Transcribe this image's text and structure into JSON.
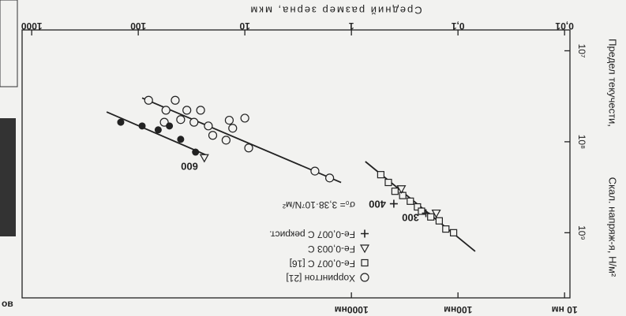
{
  "chart_data": {
    "type": "scatter",
    "x_label": "Средний размер зерна, мкм",
    "y_label": "Предел текучести,",
    "y_label2": "Скал. напряж-я, Н/м²",
    "xscale": "log",
    "yscale": "log",
    "xlim": [
      0.0089,
      1230
    ],
    "ylim": [
      5900000,
      5200000000
    ],
    "xticks": [
      {
        "value": 0.01,
        "label": "0,01"
      },
      {
        "value": 0.1,
        "label": "0,1"
      },
      1,
      10,
      100,
      1000
    ],
    "x2ticks": [
      {
        "value": 0.01,
        "label": "10 нм"
      },
      {
        "value": 0.1,
        "label": "100нм"
      },
      {
        "value": 1,
        "label": "1000нм"
      }
    ],
    "yticks": [
      {
        "value": 10000000,
        "label": "10⁷"
      },
      {
        "value": 100000000,
        "label": "10⁸"
      },
      {
        "value": 1000000000,
        "label": "10⁹"
      }
    ],
    "grid": false,
    "series": [
      {
        "name": "Хоррингтон [21]",
        "marker": "circle",
        "color": "#222222",
        "x": [
          80,
          45,
          55,
          35,
          26,
          40,
          30,
          22,
          57,
          14,
          10,
          13,
          20,
          15,
          9.2,
          2.2,
          1.6
        ],
        "values": [
          35000000,
          35000000,
          45000000,
          45000000,
          45000000,
          57000000,
          61000000,
          67000000,
          61000000,
          58000000,
          55000000,
          71000000,
          85000000,
          96000000,
          117000000,
          210000000,
          250000000
        ]
      },
      {
        "name": "Fe-0,007 C [16]",
        "marker": "square",
        "color": "#222222",
        "x": [
          0.53,
          0.45,
          0.39,
          0.33,
          0.28,
          0.24,
          0.22,
          0.18,
          0.15,
          0.13,
          0.11
        ],
        "values": [
          230000000,
          280000000,
          350000000,
          390000000,
          450000000,
          520000000,
          580000000,
          670000000,
          740000000,
          910000000,
          1000000000
        ]
      },
      {
        "name": "Fe-0,003 C",
        "marker": "triangle",
        "color": "#222222",
        "x": [
          24,
          0.34,
          0.16
        ],
        "values": [
          150000000,
          330000000,
          610000000
        ]
      },
      {
        "name": "Fe-0,007 C рекрист.",
        "marker": "plus",
        "color": "#222222",
        "x": [
          0.4,
          0.2
        ],
        "values": [
          480000000,
          610000000
        ]
      },
      {
        "marker": "filled-circle",
        "color": "#222222",
        "x": [
          146,
          92,
          65,
          51,
          40,
          29
        ],
        "values": [
          61000000,
          67000000,
          74000000,
          67000000,
          94000000,
          130000000
        ]
      }
    ],
    "fit_lines": [
      {
        "x": [
          92,
          1.25
        ],
        "values": [
          33000000,
          280000000
        ]
      },
      {
        "x": [
          198,
          23
        ],
        "values": [
          47000000,
          140000000
        ]
      },
      {
        "x": [
          0.74,
          0.069
        ],
        "values": [
          165000000,
          1600000000
        ]
      }
    ],
    "note": "σ₀= 3,38·10⁷N/м²",
    "annotations": [
      "600",
      "300",
      "400"
    ],
    "cropped_text": "ов"
  }
}
